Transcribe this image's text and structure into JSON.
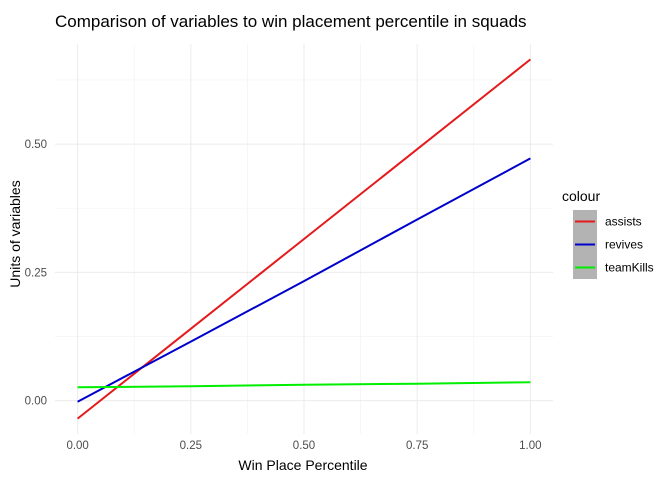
{
  "chart_data": {
    "type": "line",
    "title": "Comparison of variables to win placement percentile in squads",
    "xlabel": "Win Place Percentile",
    "ylabel": "Units of variables",
    "xlim": [
      -0.05,
      1.05
    ],
    "ylim": [
      -0.065,
      0.695
    ],
    "x_ticks": [
      0,
      0.25,
      0.5,
      0.75,
      1
    ],
    "x_tick_labels": [
      "0.00",
      "0.25",
      "0.50",
      "0.75",
      "1.00"
    ],
    "y_ticks": [
      0,
      0.25,
      0.5
    ],
    "y_tick_labels": [
      "0.00",
      "0.25",
      "0.50"
    ],
    "grid": true,
    "legend": {
      "title": "colour",
      "placement": "right"
    },
    "series": [
      {
        "name": "assists",
        "color": "#e41a1c",
        "x": [
          0,
          0.25,
          0.5,
          0.75,
          1
        ],
        "y": [
          -0.035,
          0.14,
          0.315,
          0.49,
          0.665
        ]
      },
      {
        "name": "revives",
        "color": "#0000cc",
        "x": [
          0,
          0.25,
          0.5,
          0.75,
          1
        ],
        "y": [
          -0.002,
          0.115,
          0.233,
          0.353,
          0.472
        ]
      },
      {
        "name": "teamKills",
        "color": "#00ee00",
        "x": [
          0,
          0.25,
          0.5,
          0.75,
          1
        ],
        "y": [
          0.026,
          0.028,
          0.031,
          0.033,
          0.036
        ]
      }
    ]
  }
}
